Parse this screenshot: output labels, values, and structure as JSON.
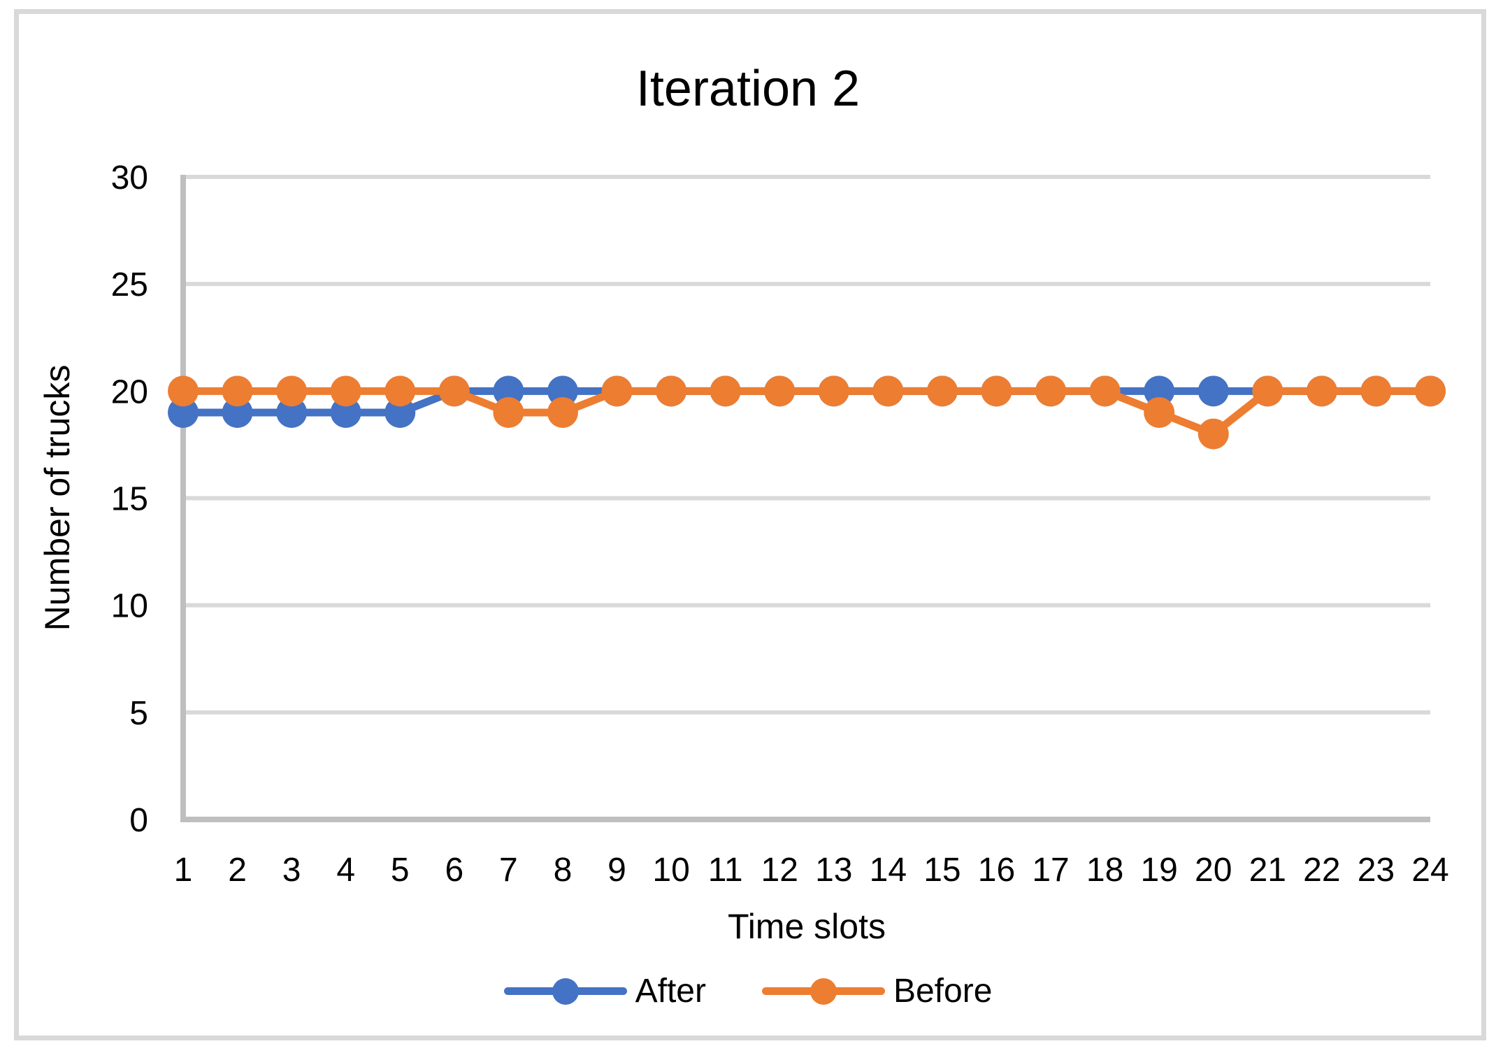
{
  "chart_data": {
    "type": "line",
    "title": "Iteration 2",
    "xlabel": "Time slots",
    "ylabel": "Number of trucks",
    "categories": [
      "1",
      "2",
      "3",
      "4",
      "5",
      "6",
      "7",
      "8",
      "9",
      "10",
      "11",
      "12",
      "13",
      "14",
      "15",
      "16",
      "17",
      "18",
      "19",
      "20",
      "21",
      "22",
      "23",
      "24"
    ],
    "series": [
      {
        "name": "After",
        "color": "#4472C4",
        "values": [
          19,
          19,
          19,
          19,
          19,
          20,
          20,
          20,
          20,
          20,
          20,
          20,
          20,
          20,
          20,
          20,
          20,
          20,
          20,
          20,
          20,
          20,
          20,
          20
        ]
      },
      {
        "name": "Before",
        "color": "#ED7D31",
        "values": [
          20,
          20,
          20,
          20,
          20,
          20,
          19,
          19,
          20,
          20,
          20,
          20,
          20,
          20,
          20,
          20,
          20,
          20,
          19,
          18,
          20,
          20,
          20,
          20
        ]
      }
    ],
    "ylim": [
      0,
      30
    ],
    "y_ticks": [
      0,
      5,
      10,
      15,
      20,
      25,
      30
    ],
    "grid": true,
    "legend_position": "bottom",
    "marker": "circle",
    "gridline_color": "#D9D9D9",
    "axis_color": "#BFBFBF",
    "frame_color": "#D9D9D9",
    "text_color": "#000000"
  }
}
